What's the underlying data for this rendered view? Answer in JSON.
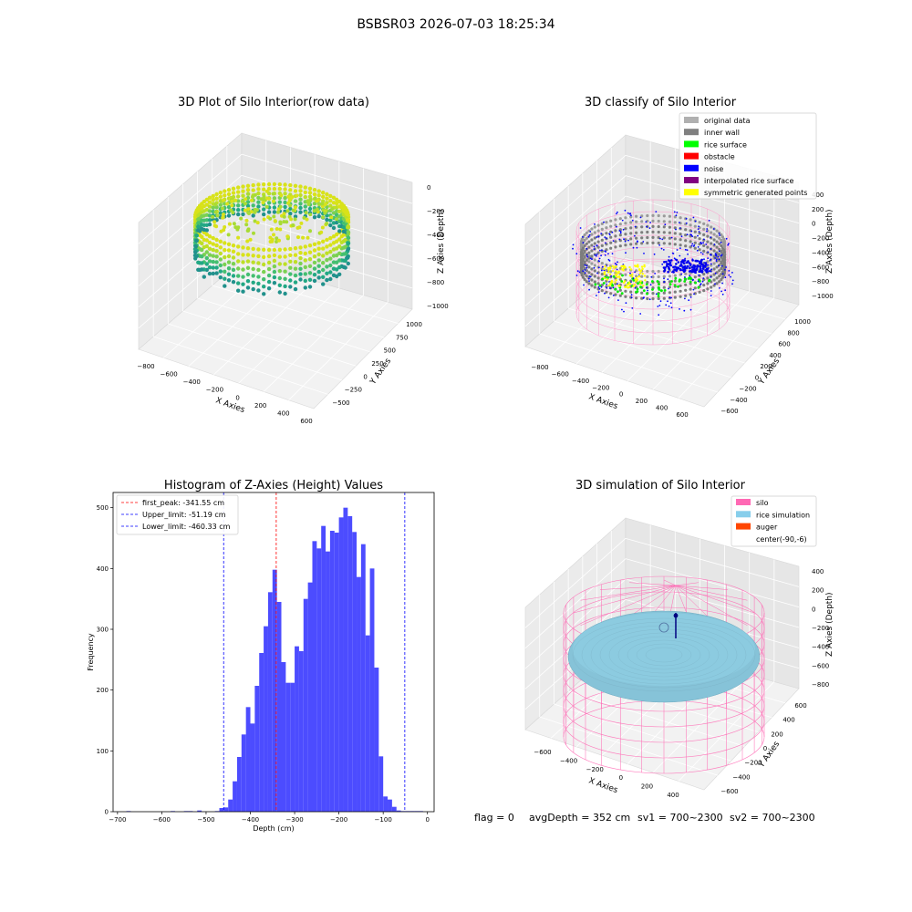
{
  "figure": {
    "suptitle": "BSBSR03 2026-07-03 18:25:34",
    "footer": {
      "flag": "flag = 0",
      "avg_depth": "avgDepth = 352 cm",
      "sv1": "sv1 = 700~2300",
      "sv2": "sv2 = 700~2300"
    }
  },
  "chart_data": [
    {
      "type": "scatter",
      "projection": "3d",
      "title": "3D Plot of Silo Interior(row data)",
      "xlabel": "X Axies",
      "ylabel": "Y Axies",
      "zlabel": "Z Axies (Depth)",
      "xticks": [
        "−800",
        "−600",
        "−400",
        "−200",
        "0",
        "200",
        "400",
        "600"
      ],
      "yticks": [
        "−500",
        "−250",
        "0",
        "250",
        "500",
        "750",
        "1000"
      ],
      "zticks": [
        "0",
        "−200",
        "−400",
        "−600",
        "−800",
        "−1000"
      ],
      "colormap": "viridis",
      "colors": {
        "low": "#1fa187",
        "mid": "#6ece58",
        "high": "#c2df23",
        "top": "#fde725"
      }
    },
    {
      "type": "scatter",
      "projection": "3d",
      "title": "3D classify of Silo Interior",
      "xlabel": "X Axies",
      "ylabel": "Y Axies",
      "zlabel": "Z Axies (Depth)",
      "xticks": [
        "−800",
        "−600",
        "−400",
        "−200",
        "0",
        "200",
        "400",
        "600"
      ],
      "yticks": [
        "−600",
        "−400",
        "−200",
        "0",
        "200",
        "400",
        "600",
        "800",
        "1000"
      ],
      "zticks": [
        "400",
        "200",
        "0",
        "−200",
        "−400",
        "−600",
        "−800",
        "−1000"
      ],
      "legend": {
        "position": "upper-right",
        "entries": [
          {
            "label": "original data",
            "color": "#b0b0b0"
          },
          {
            "label": "inner wall",
            "color": "#808080"
          },
          {
            "label": "rice surface",
            "color": "#00ff00"
          },
          {
            "label": "obstacle",
            "color": "#ff0000"
          },
          {
            "label": "noise",
            "color": "#0000ff"
          },
          {
            "label": "interpolated rice surface",
            "color": "#800080"
          },
          {
            "label": "symmetric generated points",
            "color": "#ffff00"
          }
        ]
      },
      "wireframe_color": "#ff9ccc"
    },
    {
      "type": "bar",
      "title": "Histogram of Z-Axies (Height) Values",
      "xlabel": "Depth (cm)",
      "ylabel": "Frequency",
      "xlim": [
        -710,
        15
      ],
      "ylim": [
        0,
        525
      ],
      "xticks": [
        -700,
        -600,
        -500,
        -400,
        -300,
        -200,
        -100,
        0
      ],
      "yticks": [
        0,
        100,
        200,
        300,
        400,
        500
      ],
      "bin_width": 10,
      "bin_starts": [
        -680,
        -580,
        -550,
        -540,
        -520,
        -480,
        -470,
        -460,
        -450,
        -440,
        -430,
        -420,
        -410,
        -400,
        -390,
        -380,
        -370,
        -360,
        -350,
        -340,
        -330,
        -320,
        -310,
        -300,
        -290,
        -280,
        -270,
        -260,
        -250,
        -240,
        -230,
        -220,
        -210,
        -200,
        -190,
        -180,
        -170,
        -160,
        -150,
        -140,
        -130,
        -120,
        -110,
        -100,
        -90,
        -80,
        -70,
        -60,
        -50,
        -40,
        -30,
        -20
      ],
      "values": [
        1,
        1,
        1,
        1,
        2,
        1,
        6,
        7,
        20,
        50,
        90,
        127,
        172,
        145,
        207,
        261,
        305,
        361,
        398,
        345,
        246,
        212,
        212,
        272,
        264,
        350,
        377,
        445,
        433,
        470,
        428,
        462,
        459,
        484,
        500,
        486,
        460,
        386,
        440,
        290,
        400,
        237,
        91,
        25,
        20,
        8,
        2,
        1,
        1,
        1,
        1,
        1
      ],
      "bar_color": "#4c4cff",
      "vlines": [
        {
          "label": "first_peak: -341.55 cm",
          "x": -341.55,
          "color": "#ff0000"
        },
        {
          "label": "Upper_limit: -51.19 cm",
          "x": -51.19,
          "color": "#0000ff"
        },
        {
          "label": "Lower_limit: -460.33 cm",
          "x": -460.33,
          "color": "#0000ff"
        }
      ],
      "legend": {
        "position": "upper-left"
      }
    },
    {
      "type": "surface",
      "projection": "3d",
      "title": "3D simulation of Silo Interior",
      "xlabel": "X Axies",
      "ylabel": "Y Axies",
      "zlabel": "Z Axies (Depth)",
      "xticks": [
        "−600",
        "−400",
        "−200",
        "0",
        "200",
        "400"
      ],
      "yticks": [
        "−600",
        "−400",
        "−200",
        "0",
        "200",
        "400",
        "600"
      ],
      "zticks": [
        "400",
        "200",
        "0",
        "−200",
        "−400",
        "−600",
        "−800"
      ],
      "legend": {
        "position": "upper-right",
        "entries": [
          {
            "label": "silo",
            "color": "#ff69b4"
          },
          {
            "label": "rice simulation",
            "color": "#87ceeb"
          },
          {
            "label": "auger",
            "color": "#ff4500"
          },
          {
            "label": "center(-90,-6)",
            "color": ""
          }
        ]
      }
    }
  ]
}
